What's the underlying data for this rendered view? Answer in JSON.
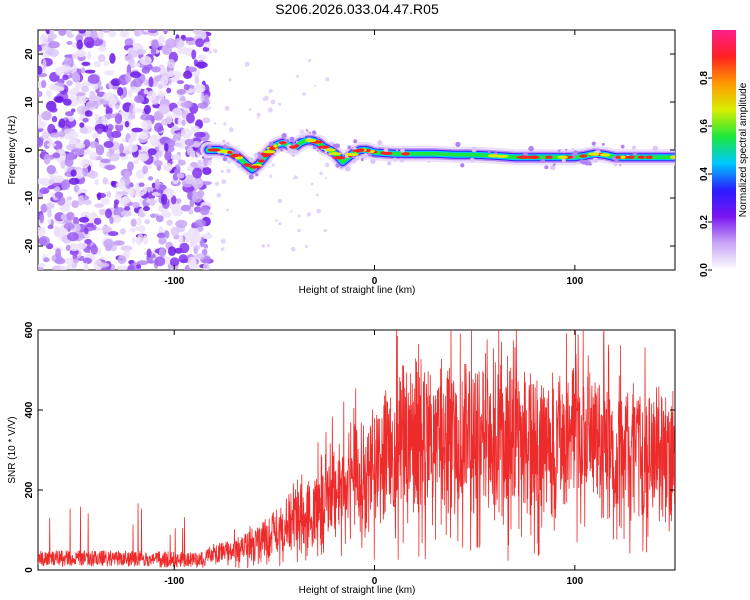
{
  "title": "S206.2026.033.04.47.R05",
  "chart_data": [
    {
      "type": "heatmap",
      "name": "spectrogram",
      "xlabel": "Height of straight line (km)",
      "ylabel": "Frequency (Hz)",
      "xlim": [
        -168,
        150
      ],
      "ylim": [
        -25,
        25
      ],
      "xticks": [
        -100,
        0,
        100
      ],
      "xtick_labels": [
        "-100",
        "0",
        "100"
      ],
      "yticks": [
        20,
        10,
        0,
        -10,
        -20
      ],
      "ytick_labels": [
        "20",
        "10",
        "0",
        "-10",
        "-20"
      ],
      "noise_region_x": [
        -168,
        -83
      ],
      "signal_track": {
        "x": [
          -83,
          -78,
          -72,
          -68,
          -64,
          -61,
          -58,
          -55,
          -52,
          -49,
          -46,
          -43,
          -40,
          -37,
          -34,
          -31,
          -28,
          -25,
          -22,
          -19,
          -16,
          -13,
          -10,
          -7,
          -4,
          0,
          10,
          20,
          30,
          40,
          50,
          60,
          70,
          80,
          90,
          95,
          100,
          105,
          110,
          115,
          120,
          125,
          130,
          140,
          150
        ],
        "y": [
          0,
          0,
          -0.5,
          -1.5,
          -3,
          -4,
          -3,
          -1.5,
          0,
          1,
          1.5,
          1,
          0.5,
          1.5,
          2,
          2,
          1.5,
          0.5,
          0,
          -1,
          -2.5,
          -1.5,
          -0.5,
          0,
          0,
          -0.5,
          -0.8,
          -0.8,
          -0.8,
          -1,
          -1,
          -1.2,
          -1.5,
          -1.5,
          -1.5,
          -1.5,
          -1.5,
          -1.2,
          -0.8,
          -1,
          -1.5,
          -1.5,
          -1.5,
          -1.5,
          -1.5
        ]
      },
      "colorbar": {
        "label": "Normalized spectral amplitude",
        "range": [
          0,
          1
        ],
        "ticks": [
          0.0,
          0.2,
          0.4,
          0.6,
          0.8
        ],
        "tick_labels": [
          "0.0",
          "0.2",
          "0.4",
          "0.6",
          "0.8"
        ],
        "colors": [
          "#ffffff",
          "#c9a6f7",
          "#7a16f0",
          "#2a1cff",
          "#00c8ff",
          "#1ce83c",
          "#d8ee00",
          "#ff9900",
          "#ff2020",
          "#ff1e8c"
        ]
      }
    },
    {
      "type": "line",
      "name": "snr",
      "xlabel": "Height of straight line (km)",
      "ylabel": "SNR (10 * V/V)",
      "xlim": [
        -168,
        150
      ],
      "ylim": [
        0,
        600
      ],
      "xticks": [
        -100,
        0,
        100
      ],
      "xtick_labels": [
        "-100",
        "0",
        "100"
      ],
      "yticks": [
        0,
        200,
        400,
        600
      ],
      "ytick_labels": [
        "0",
        "200",
        "400",
        "600"
      ],
      "color": "#ee2b2b",
      "envelope_x": [
        -168,
        -120,
        -85,
        -80,
        -70,
        -60,
        -50,
        -40,
        -30,
        -20,
        -10,
        0,
        10,
        20,
        30,
        40,
        50,
        60,
        70,
        80,
        90,
        100,
        110,
        120,
        130,
        140,
        150
      ],
      "envelope_y": [
        30,
        28,
        25,
        55,
        70,
        95,
        125,
        170,
        220,
        270,
        310,
        350,
        420,
        450,
        470,
        470,
        460,
        450,
        440,
        440,
        430,
        430,
        420,
        410,
        400,
        400,
        400
      ]
    }
  ]
}
